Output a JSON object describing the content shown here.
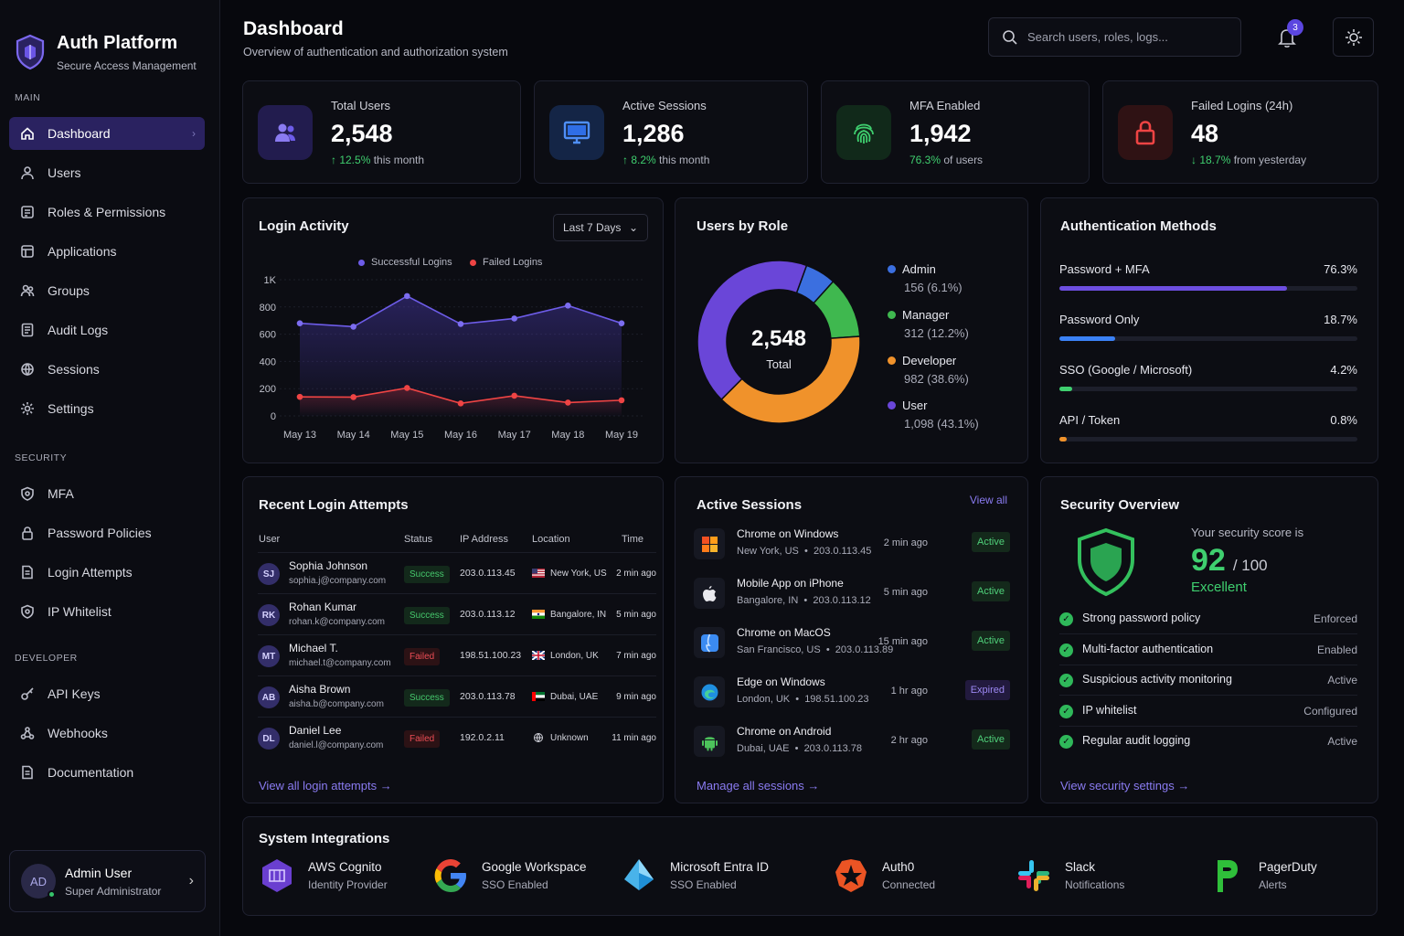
{
  "brand": {
    "title": "Auth Platform",
    "subtitle": "Secure Access Management"
  },
  "sidebar": {
    "sections": [
      {
        "label": "MAIN",
        "items": [
          {
            "label": "Dashboard",
            "icon": "home-icon",
            "active": true
          },
          {
            "label": "Users",
            "icon": "user-icon"
          },
          {
            "label": "Roles & Permissions",
            "icon": "roles-icon"
          },
          {
            "label": "Applications",
            "icon": "apps-icon"
          },
          {
            "label": "Groups",
            "icon": "groups-icon"
          },
          {
            "label": "Audit Logs",
            "icon": "audit-icon"
          },
          {
            "label": "Sessions",
            "icon": "sessions-icon"
          },
          {
            "label": "Settings",
            "icon": "gear-icon"
          }
        ]
      },
      {
        "label": "SECURITY",
        "items": [
          {
            "label": "MFA",
            "icon": "shield-icon"
          },
          {
            "label": "Password Policies",
            "icon": "lock-icon"
          },
          {
            "label": "Login Attempts",
            "icon": "document-icon"
          },
          {
            "label": "IP Whitelist",
            "icon": "shield-icon"
          }
        ]
      },
      {
        "label": "DEVELOPER",
        "items": [
          {
            "label": "API Keys",
            "icon": "key-icon"
          },
          {
            "label": "Webhooks",
            "icon": "webhook-icon"
          },
          {
            "label": "Documentation",
            "icon": "document-icon"
          }
        ]
      }
    ],
    "user": {
      "initials": "AD",
      "name": "Admin User",
      "role": "Super Administrator"
    }
  },
  "header": {
    "title": "Dashboard",
    "subtitle": "Overview of authentication and authorization system",
    "search_placeholder": "Search users, roles, logs...",
    "notification_count": "3"
  },
  "stats": [
    {
      "label": "Total Users",
      "value": "2,548",
      "delta": "↑ 12.5%",
      "delta_text": "this month",
      "color": "#8a7bf1",
      "icon": "users-icon"
    },
    {
      "label": "Active Sessions",
      "value": "1,286",
      "delta": "↑ 8.2%",
      "delta_text": "this month",
      "color": "#3b82f6",
      "icon": "monitor-icon"
    },
    {
      "label": "MFA Enabled",
      "value": "1,942",
      "delta": "76.3%",
      "delta_text": "of users",
      "color": "#3fcf6f",
      "icon": "fingerprint-icon"
    },
    {
      "label": "Failed Logins (24h)",
      "value": "48",
      "delta": "↓ 18.7%",
      "delta_text": "from yesterday",
      "color": "#ef4444",
      "icon": "lock-icon"
    }
  ],
  "login_activity": {
    "title": "Login Activity",
    "range": "Last 7 Days",
    "chart_data": {
      "type": "line",
      "x": [
        "May 13",
        "May 14",
        "May 15",
        "May 16",
        "May 17",
        "May 18",
        "May 19"
      ],
      "yticks": [
        "0",
        "200",
        "400",
        "600",
        "800",
        "1K"
      ],
      "ylim": [
        0,
        1000
      ],
      "series": [
        {
          "name": "Successful Logins",
          "color": "#6d5ce8",
          "values": [
            680,
            655,
            880,
            675,
            715,
            810,
            680
          ]
        },
        {
          "name": "Failed Logins",
          "color": "#ef4444",
          "values": [
            140,
            138,
            205,
            92,
            148,
            98,
            115
          ]
        }
      ]
    }
  },
  "users_by_role": {
    "title": "Users by Role",
    "total": "2,548",
    "total_label": "Total",
    "chart_data": {
      "type": "pie",
      "slices": [
        {
          "name": "Admin",
          "value": 156,
          "label": "156 (6.1%)",
          "color": "#3b6fe0"
        },
        {
          "name": "Manager",
          "value": 312,
          "label": "312 (12.2%)",
          "color": "#3fb84f"
        },
        {
          "name": "Developer",
          "value": 982,
          "label": "982 (38.6%)",
          "color": "#f0922b"
        },
        {
          "name": "User",
          "value": 1098,
          "label": "1,098 (43.1%)",
          "color": "#6a46d8"
        }
      ]
    }
  },
  "auth_methods": {
    "title": "Authentication Methods",
    "items": [
      {
        "label": "Password + MFA",
        "value": "76.3%",
        "pct": 76.3,
        "color": "#6d4ee0"
      },
      {
        "label": "Password Only",
        "value": "18.7%",
        "pct": 18.7,
        "color": "#3b82f6"
      },
      {
        "label": "SSO (Google / Microsoft)",
        "value": "4.2%",
        "pct": 4.2,
        "color": "#3fcf6f"
      },
      {
        "label": "API / Token",
        "value": "0.8%",
        "pct": 0.8,
        "color": "#f0922b"
      }
    ]
  },
  "recent_logins": {
    "title": "Recent Login Attempts",
    "columns": [
      "User",
      "Status",
      "IP Address",
      "Location",
      "Time"
    ],
    "rows": [
      {
        "initials": "SJ",
        "name": "Sophia Johnson",
        "email": "sophia.j@company.com",
        "status": "Success",
        "ip": "203.0.113.45",
        "location": "New York, US",
        "flag": "us",
        "time": "2 min ago"
      },
      {
        "initials": "RK",
        "name": "Rohan Kumar",
        "email": "rohan.k@company.com",
        "status": "Success",
        "ip": "203.0.113.12",
        "location": "Bangalore, IN",
        "flag": "in",
        "time": "5 min ago"
      },
      {
        "initials": "MT",
        "name": "Michael T.",
        "email": "michael.t@company.com",
        "status": "Failed",
        "ip": "198.51.100.23",
        "location": "London, UK",
        "flag": "uk",
        "time": "7 min ago"
      },
      {
        "initials": "AB",
        "name": "Aisha Brown",
        "email": "aisha.b@company.com",
        "status": "Success",
        "ip": "203.0.113.78",
        "location": "Dubai, UAE",
        "flag": "ae",
        "time": "9 min ago"
      },
      {
        "initials": "DL",
        "name": "Daniel Lee",
        "email": "daniel.l@company.com",
        "status": "Failed",
        "ip": "192.0.2.11",
        "location": "Unknown",
        "flag": "globe",
        "time": "11 min ago"
      }
    ],
    "link": "View all login attempts"
  },
  "active_sessions": {
    "title": "Active Sessions",
    "view_all": "View all",
    "rows": [
      {
        "name": "Chrome on Windows",
        "location": "New York, US",
        "ip": "203.0.113.45",
        "time": "2 min ago",
        "status": "Active",
        "icon": "windows-icon"
      },
      {
        "name": "Mobile App on iPhone",
        "location": "Bangalore, IN",
        "ip": "203.0.113.12",
        "time": "5 min ago",
        "status": "Active",
        "icon": "apple-icon"
      },
      {
        "name": "Chrome on MacOS",
        "location": "San Francisco, US",
        "ip": "203.0.113.89",
        "time": "15 min ago",
        "status": "Active",
        "icon": "macos-icon"
      },
      {
        "name": "Edge on Windows",
        "location": "London, UK",
        "ip": "198.51.100.23",
        "time": "1 hr ago",
        "status": "Expired",
        "icon": "edge-icon"
      },
      {
        "name": "Chrome on Android",
        "location": "Dubai, UAE",
        "ip": "203.0.113.78",
        "time": "2 hr ago",
        "status": "Active",
        "icon": "android-icon"
      }
    ],
    "link": "Manage all sessions"
  },
  "security": {
    "title": "Security Overview",
    "score_label": "Your security score is",
    "score": "92",
    "score_max": "/ 100",
    "score_rating": "Excellent",
    "items": [
      {
        "label": "Strong password policy",
        "status": "Enforced"
      },
      {
        "label": "Multi-factor authentication",
        "status": "Enabled"
      },
      {
        "label": "Suspicious activity monitoring",
        "status": "Active"
      },
      {
        "label": "IP whitelist",
        "status": "Configured"
      },
      {
        "label": "Regular audit logging",
        "status": "Active"
      }
    ],
    "link": "View security settings"
  },
  "integrations": {
    "title": "System Integrations",
    "items": [
      {
        "name": "AWS Cognito",
        "sub": "Identity Provider",
        "icon": "aws-cognito-icon"
      },
      {
        "name": "Google Workspace",
        "sub": "SSO Enabled",
        "icon": "google-icon"
      },
      {
        "name": "Microsoft Entra ID",
        "sub": "SSO Enabled",
        "icon": "entra-icon"
      },
      {
        "name": "Auth0",
        "sub": "Connected",
        "icon": "auth0-icon"
      },
      {
        "name": "Slack",
        "sub": "Notifications",
        "icon": "slack-icon"
      },
      {
        "name": "PagerDuty",
        "sub": "Alerts",
        "icon": "pagerduty-icon"
      }
    ]
  }
}
